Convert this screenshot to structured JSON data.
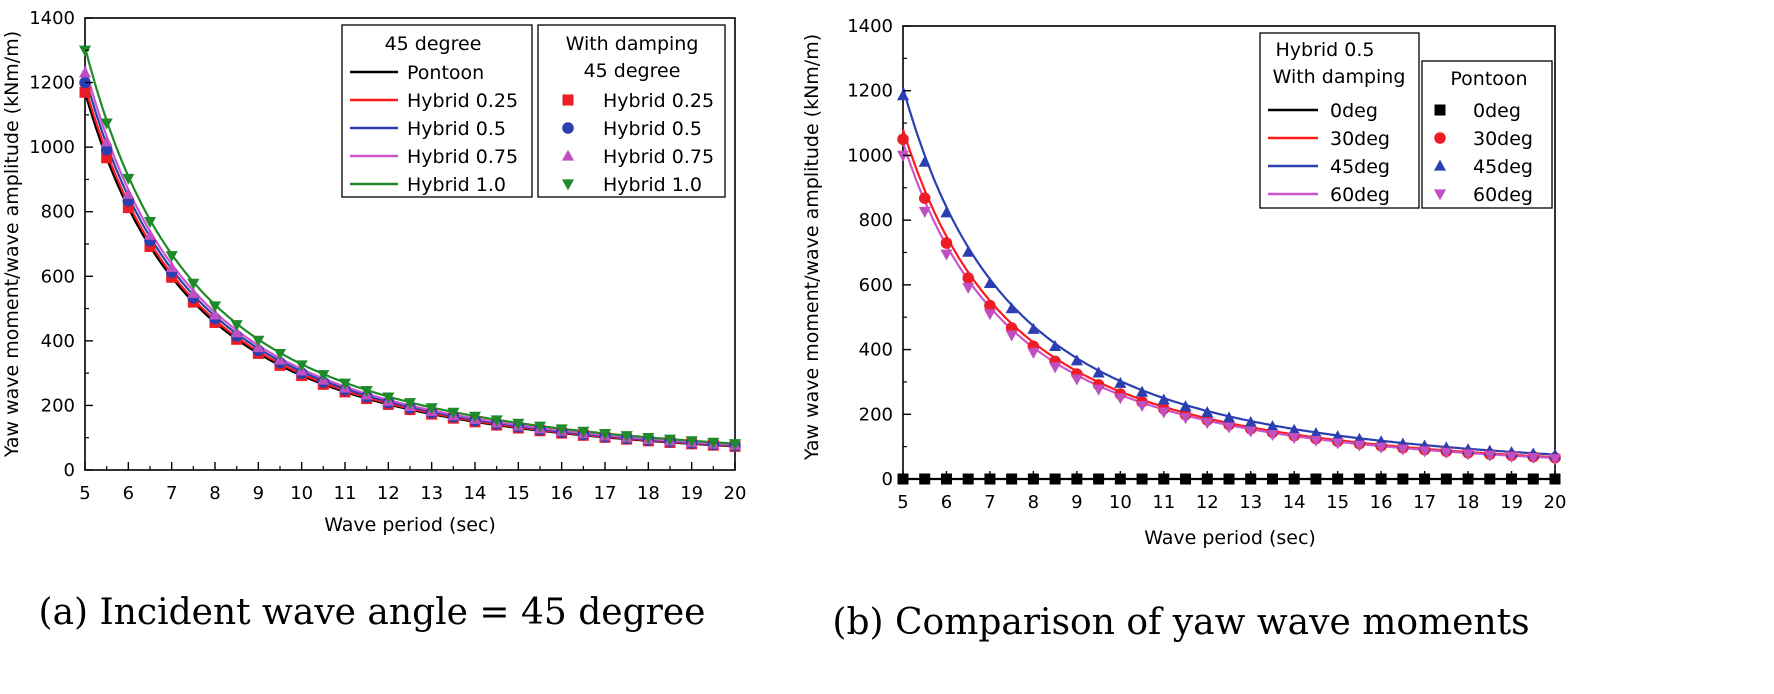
{
  "chart_data": [
    {
      "type": "line",
      "panel": "a",
      "caption": "(a) Incident wave angle = 45 degree",
      "xlabel": "Wave period (sec)",
      "ylabel": "Yaw wave moment/wave amplitude (kNm/m)",
      "xlim": [
        5,
        20
      ],
      "ylim": [
        0,
        1400
      ],
      "xticks": [
        5,
        6,
        7,
        8,
        9,
        10,
        11,
        12,
        13,
        14,
        15,
        16,
        17,
        18,
        19,
        20
      ],
      "yticks": [
        0,
        200,
        400,
        600,
        800,
        1000,
        1200,
        1400
      ],
      "legend_left_title": "45 degree",
      "legend_right_title_1": "With damping",
      "legend_right_title_2": "45 degree",
      "curve_model": "y = A * (5/x)^2",
      "series": [
        {
          "name": "Pontoon",
          "color": "#000000",
          "A": 1170,
          "kind": "line"
        },
        {
          "name": "Hybrid 0.25",
          "color": "#ff1a1a",
          "A": 1190,
          "kind": "line"
        },
        {
          "name": "Hybrid 0.5",
          "color": "#2b3fb0",
          "A": 1220,
          "kind": "line"
        },
        {
          "name": "Hybrid 0.75",
          "color": "#cc55cc",
          "A": 1250,
          "kind": "line"
        },
        {
          "name": "Hybrid 1.0",
          "color": "#1f8a2a",
          "A": 1310,
          "kind": "line"
        },
        {
          "name": "Hybrid 0.25",
          "color": "#ee1c25",
          "A": 1170,
          "kind": "marker",
          "marker": "square"
        },
        {
          "name": "Hybrid 0.5",
          "color": "#2b3fb0",
          "A": 1200,
          "kind": "marker",
          "marker": "circle"
        },
        {
          "name": "Hybrid 0.75",
          "color": "#c050c0",
          "A": 1230,
          "kind": "marker",
          "marker": "triangle-up"
        },
        {
          "name": "Hybrid 1.0",
          "color": "#1f8a2a",
          "A": 1300,
          "kind": "marker",
          "marker": "triangle-down"
        }
      ]
    },
    {
      "type": "line",
      "panel": "b",
      "caption": "(b) Comparison of yaw wave moments",
      "xlabel": "Wave period (sec)",
      "ylabel": "Yaw wave moment/wave amplitude (kNm/m)",
      "xlim": [
        5,
        20
      ],
      "ylim": [
        0,
        1400
      ],
      "xticks": [
        5,
        6,
        7,
        8,
        9,
        10,
        11,
        12,
        13,
        14,
        15,
        16,
        17,
        18,
        19,
        20
      ],
      "yticks": [
        0,
        200,
        400,
        600,
        800,
        1000,
        1200,
        1400
      ],
      "legend_left_title_1": "Hybrid 0.5",
      "legend_left_title_2": "With damping",
      "legend_right_title": "Pontoon",
      "curve_model": "y = A * (5/x)^2",
      "series": [
        {
          "name": "0deg",
          "color": "#000000",
          "A": 0,
          "kind": "line"
        },
        {
          "name": "30deg",
          "color": "#ff1a1a",
          "A": 1080,
          "kind": "line"
        },
        {
          "name": "45deg",
          "color": "#2b3fb0",
          "A": 1210,
          "kind": "line"
        },
        {
          "name": "60deg",
          "color": "#cc55cc",
          "A": 1040,
          "kind": "line"
        },
        {
          "name": "0deg",
          "color": "#000000",
          "A": 0,
          "kind": "marker",
          "marker": "square"
        },
        {
          "name": "30deg",
          "color": "#ee1c25",
          "A": 1050,
          "kind": "marker",
          "marker": "circle"
        },
        {
          "name": "45deg",
          "color": "#2b3fb0",
          "A": 1185,
          "kind": "marker",
          "marker": "triangle-up"
        },
        {
          "name": "60deg",
          "color": "#c050c0",
          "A": 1000,
          "kind": "marker",
          "marker": "triangle-down"
        }
      ]
    }
  ]
}
